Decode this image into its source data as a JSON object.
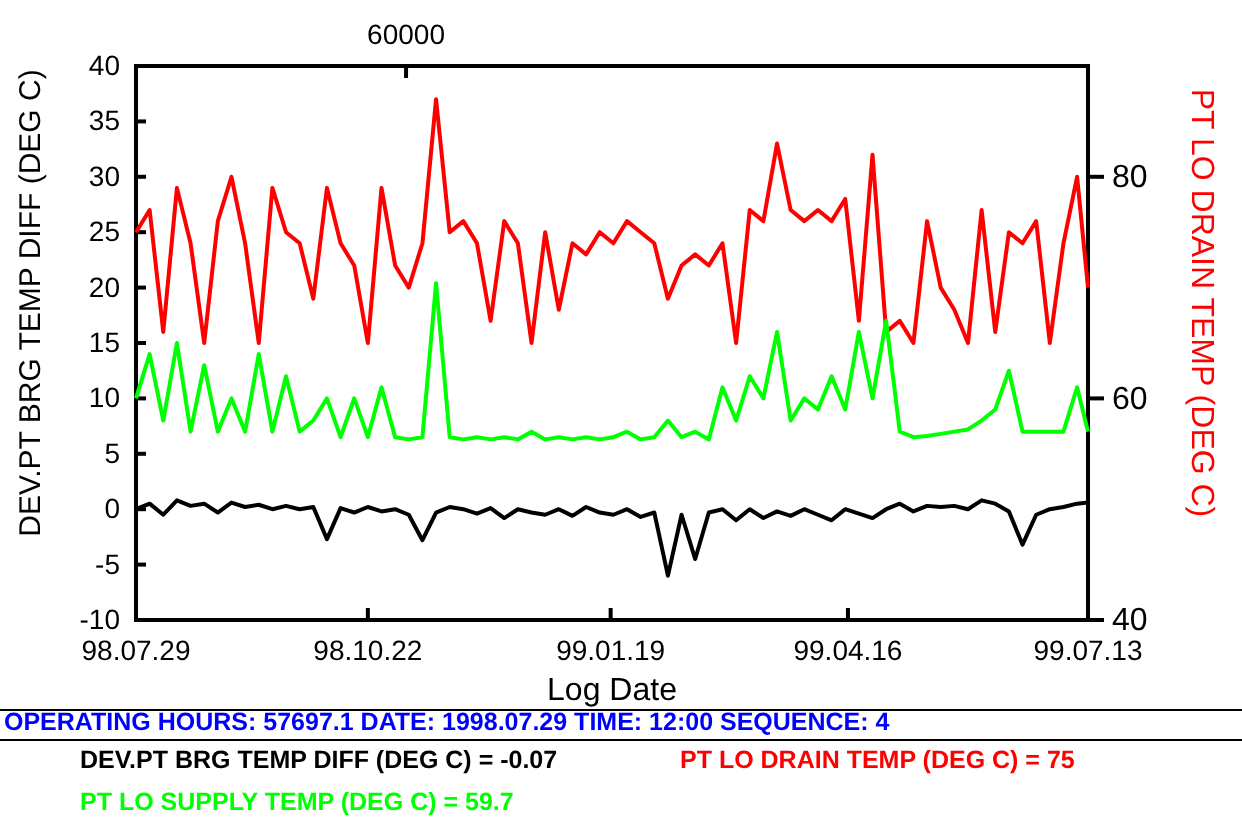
{
  "chart_data": {
    "type": "line",
    "xlabel": "Log Date",
    "ylabel": "DEV.PT BRG TEMP DIFF (DEG C)",
    "y2label": "PT LO DRAIN TEMP (DEG C)",
    "x": [
      "1998-07-29",
      "1998-08-03",
      "1998-08-08",
      "1998-08-13",
      "1998-08-18",
      "1998-08-23",
      "1998-08-28",
      "1998-09-02",
      "1998-09-07",
      "1998-09-12",
      "1998-09-17",
      "1998-09-22",
      "1998-09-27",
      "1998-10-02",
      "1998-10-07",
      "1998-10-12",
      "1998-10-17",
      "1998-10-22",
      "1998-10-27",
      "1998-11-01",
      "1998-11-06",
      "1998-11-11",
      "1998-11-16",
      "1998-11-21",
      "1998-11-26",
      "1998-12-01",
      "1998-12-06",
      "1998-12-11",
      "1998-12-16",
      "1998-12-21",
      "1998-12-26",
      "1998-12-31",
      "1999-01-05",
      "1999-01-10",
      "1999-01-15",
      "1999-01-20",
      "1999-01-25",
      "1999-01-30",
      "1999-02-04",
      "1999-02-09",
      "1999-02-14",
      "1999-02-19",
      "1999-02-24",
      "1999-03-01",
      "1999-03-06",
      "1999-03-11",
      "1999-03-16",
      "1999-03-21",
      "1999-03-26",
      "1999-03-31",
      "1999-04-05",
      "1999-04-10",
      "1999-04-15",
      "1999-04-20",
      "1999-04-25",
      "1999-04-30",
      "1999-05-05",
      "1999-05-10",
      "1999-05-15",
      "1999-05-20",
      "1999-05-25",
      "1999-05-30",
      "1999-06-04",
      "1999-06-09",
      "1999-06-14",
      "1999-06-19",
      "1999-06-24",
      "1999-06-29",
      "1999-07-04",
      "1999-07-09",
      "1999-07-13"
    ],
    "series": [
      {
        "color": "#000000",
        "values": [
          0,
          0.5,
          -0.5,
          0.8,
          0.3,
          0.5,
          -0.3,
          0.6,
          0.2,
          0.4,
          0,
          0.3,
          0,
          0.2,
          -2.7,
          0.1,
          -0.3,
          0.2,
          -0.2,
          0,
          -0.5,
          -2.8,
          -0.3,
          0.2,
          0,
          -0.4,
          0.1,
          -0.8,
          0,
          -0.3,
          -0.5,
          0,
          -0.6,
          0.2,
          -0.3,
          -0.5,
          0,
          -0.7,
          -0.3,
          -6,
          -0.5,
          -4.5,
          -0.3,
          0,
          -1,
          0,
          -0.8,
          -0.2,
          -0.6,
          0,
          -0.5,
          -1,
          0,
          -0.4,
          -0.8,
          0,
          0.5,
          -0.2,
          0.3,
          0.2,
          0.3,
          0,
          0.8,
          0.5,
          -0.2,
          -3.2,
          -0.5,
          0,
          0.2,
          0.5,
          0.6
        ]
      },
      {
        "color": "#ff0000",
        "axis": "y2",
        "values": [
          75,
          77,
          66,
          79,
          74,
          65,
          76,
          80,
          74,
          65,
          79,
          75,
          74,
          69,
          79,
          74,
          72,
          65,
          79,
          72,
          70,
          74,
          87,
          75,
          76,
          74,
          67,
          76,
          74,
          65,
          75,
          68,
          74,
          73,
          75,
          74,
          76,
          75,
          74,
          69,
          72,
          73,
          72,
          74,
          65,
          77,
          76,
          83,
          77,
          76,
          77,
          76,
          78,
          67,
          82,
          66,
          67,
          65,
          76,
          70,
          68,
          65,
          77,
          66,
          75,
          74,
          76,
          65,
          74,
          80,
          70
        ]
      },
      {
        "color": "#00ff00",
        "axis": "y2",
        "values": [
          60,
          64,
          58,
          65,
          57,
          63,
          57,
          60,
          57,
          64,
          57,
          62,
          57,
          58,
          60,
          56.5,
          60,
          56.5,
          61,
          56.5,
          56.3,
          56.5,
          70.4,
          56.5,
          56.3,
          56.5,
          56.3,
          56.5,
          56.3,
          57,
          56.3,
          56.5,
          56.3,
          56.5,
          56.3,
          56.5,
          57,
          56.3,
          56.5,
          58,
          56.5,
          57,
          56.3,
          61,
          58,
          62,
          60,
          66,
          58,
          60,
          59,
          62,
          59,
          66,
          60,
          67,
          57,
          56.5,
          56.6,
          56.8,
          57,
          57.2,
          58,
          59,
          62.5,
          57,
          57,
          57,
          57,
          61,
          57
        ]
      }
    ],
    "xlim": [
      "1998-07-29",
      "1999-07-13"
    ],
    "xticks": [
      {
        "value": "1998-07-29",
        "label": "98.07.29"
      },
      {
        "value": "1998-10-22",
        "label": "98.10.22"
      },
      {
        "value": "1999-01-19",
        "label": "99.01.19"
      },
      {
        "value": "1999-04-16",
        "label": "99.04.16"
      },
      {
        "value": "1999-07-13",
        "label": "99.07.13"
      }
    ],
    "ylim": [
      -10,
      40
    ],
    "yticks": [
      -10,
      -5,
      0,
      5,
      10,
      15,
      20,
      25,
      30,
      35,
      40
    ],
    "y2lim": [
      40,
      90
    ],
    "y2ticks": [
      40,
      60,
      80
    ],
    "annotations": [
      {
        "text": "60000",
        "x": "1998-11-05"
      },
      "OPERATING HOURS: 57697.1  DATE: 1998.07.29  TIME: 12:00  SEQUENCE: 4",
      "DEV.PT BRG TEMP DIFF (DEG C) = -0.07",
      "PT LO DRAIN TEMP (DEG C) = 75",
      "PT LO SUPPLY TEMP (DEG C) = 59.7"
    ]
  }
}
